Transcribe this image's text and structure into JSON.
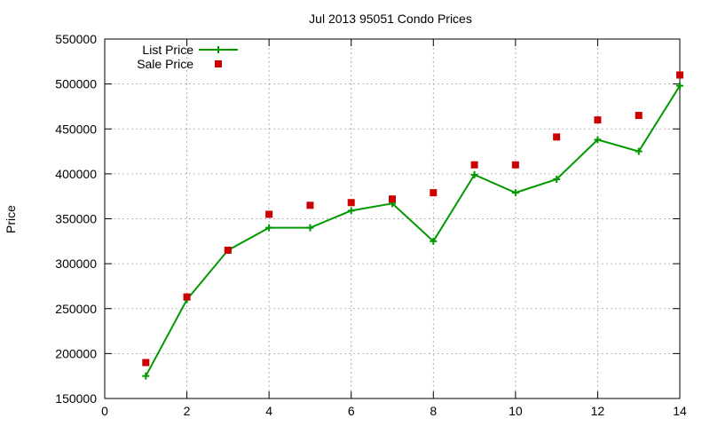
{
  "chart_data": {
    "type": "line",
    "title": "Jul 2013 95051 Condo Prices",
    "xlabel": "",
    "ylabel": "Price",
    "xlim": [
      0,
      14
    ],
    "ylim": [
      150000,
      550000
    ],
    "x_ticks": [
      0,
      2,
      4,
      6,
      8,
      10,
      12,
      14
    ],
    "x_tick_labels": [
      "0",
      "2",
      "4",
      "6",
      "8",
      "10",
      "12",
      "14"
    ],
    "y_ticks": [
      150000,
      200000,
      250000,
      300000,
      350000,
      400000,
      450000,
      500000,
      550000
    ],
    "y_tick_labels": [
      "150000",
      "200000",
      "250000",
      "300000",
      "350000",
      "400000",
      "450000",
      "500000",
      "550000"
    ],
    "grid": true,
    "legend_position": "top-left",
    "series": [
      {
        "name": "List Price",
        "style": "line-points",
        "marker": "plus",
        "color": "#009900",
        "x": [
          1,
          2,
          3,
          4,
          5,
          6,
          7,
          8,
          9,
          10,
          11,
          12,
          13,
          14
        ],
        "values": [
          175000,
          260000,
          315000,
          340000,
          340000,
          359000,
          367000,
          325000,
          399000,
          379000,
          394000,
          438000,
          425000,
          498000
        ]
      },
      {
        "name": "Sale Price",
        "style": "points",
        "marker": "square",
        "color": "#cc0000",
        "x": [
          1,
          2,
          3,
          4,
          5,
          6,
          7,
          8,
          9,
          10,
          11,
          12,
          13,
          14
        ],
        "values": [
          190000,
          263000,
          315000,
          355000,
          365000,
          368000,
          372000,
          379000,
          410000,
          410000,
          441000,
          460000,
          465000,
          510000
        ]
      }
    ]
  }
}
